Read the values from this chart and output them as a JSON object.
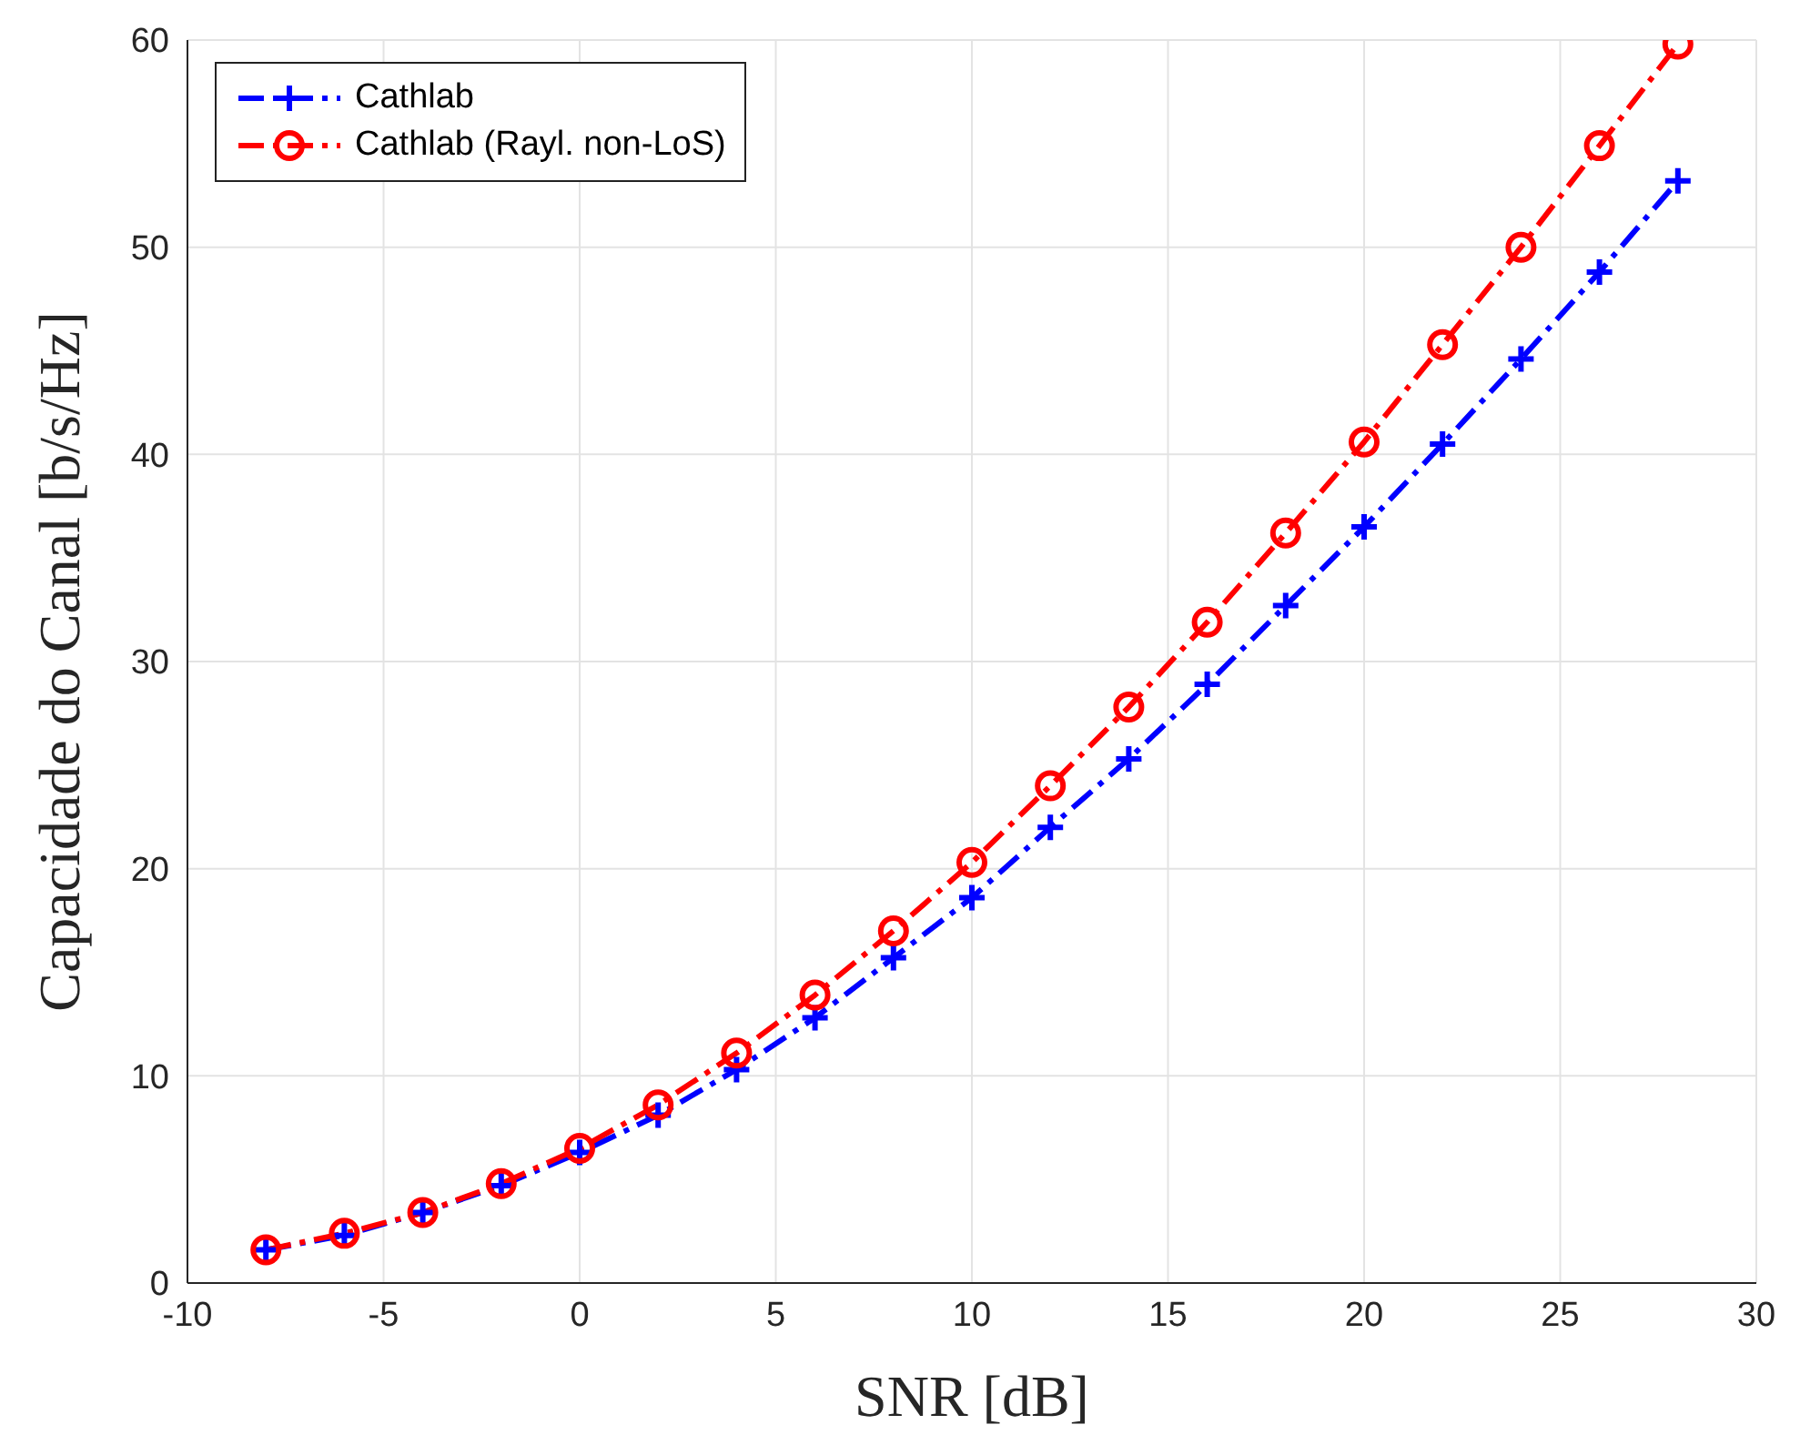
{
  "chart_data": {
    "type": "line",
    "xlabel": "SNR [dB]",
    "ylabel": "Capacidade do Canal [b/s/Hz]",
    "x": [
      -8,
      -6,
      -4,
      -2,
      0,
      2,
      4,
      6,
      8,
      10,
      12,
      14,
      16,
      18,
      20,
      22,
      24,
      26,
      28
    ],
    "series": [
      {
        "name": "Cathlab",
        "color": "#0000ff",
        "marker": "cross",
        "values": [
          1.6,
          2.3,
          3.4,
          4.7,
          6.3,
          8.1,
          10.3,
          12.8,
          15.7,
          18.6,
          22.0,
          25.3,
          28.9,
          32.7,
          36.5,
          40.5,
          44.6,
          48.8,
          53.2
        ]
      },
      {
        "name": "Cathlab (Rayl. non-LoS)",
        "color": "#ff0000",
        "marker": "circle",
        "values": [
          1.6,
          2.4,
          3.4,
          4.8,
          6.5,
          8.6,
          11.1,
          13.9,
          17.0,
          20.3,
          24.0,
          27.8,
          31.9,
          36.2,
          40.6,
          45.3,
          50.0,
          54.9,
          59.8
        ]
      }
    ],
    "xlim": [
      -10,
      30
    ],
    "xticks": [
      -10,
      -5,
      0,
      5,
      10,
      15,
      20,
      25,
      30
    ],
    "ylim": [
      0,
      60
    ],
    "yticks": [
      0,
      10,
      20,
      30,
      40,
      50,
      60
    ],
    "grid": true,
    "legend": "top left",
    "line_style": "dashed"
  }
}
